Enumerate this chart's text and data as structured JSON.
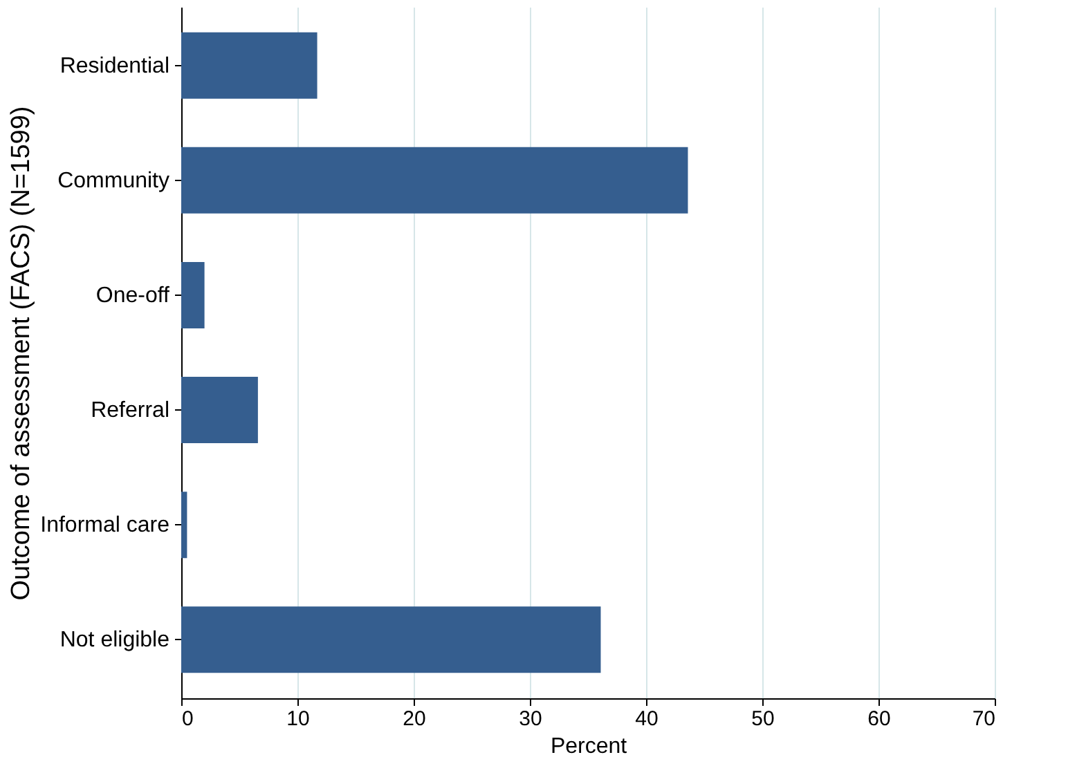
{
  "chart_data": {
    "type": "bar",
    "orientation": "horizontal",
    "xlabel": "Percent",
    "ylabel": "Outcome of assessment (FACS) (N=1599)",
    "categories": [
      "Residential",
      "Community",
      "One-off",
      "Referral",
      "Informal care",
      "Not eligible"
    ],
    "values": [
      11.7,
      43.6,
      2.0,
      6.6,
      0.5,
      36.1
    ],
    "color": "#355e8f",
    "xlim": [
      0,
      70
    ],
    "xticks": [
      0,
      10,
      20,
      30,
      40,
      50,
      60,
      70
    ],
    "grid": "x"
  }
}
